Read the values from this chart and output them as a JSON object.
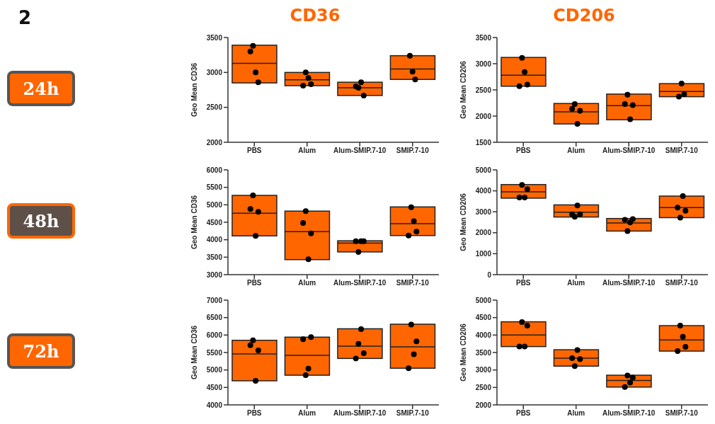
{
  "chart_data": [
    {
      "type": "box",
      "title": "CD36",
      "ylabel": "Geo Mean CD36",
      "annotations": [
        "2",
        "24h"
      ],
      "categories": [
        "PBS",
        "Alum",
        "Alum-SMIP.7-10",
        "SMIP.7-10"
      ],
      "ylim": [
        2000,
        3500
      ],
      "yticks": [
        2000,
        2500,
        3000,
        3500
      ],
      "series": [
        {
          "type": "box",
          "color": "#ff6600",
          "boxes": [
            {
              "low": 2850,
              "q1": 2850,
              "median": 3130,
              "q3": 3390,
              "high": 3390
            },
            {
              "low": 2810,
              "q1": 2810,
              "median": 2895,
              "q3": 3000,
              "high": 3000
            },
            {
              "low": 2670,
              "q1": 2670,
              "median": 2780,
              "q3": 2860,
              "high": 2860
            },
            {
              "low": 2900,
              "q1": 2900,
              "median": 3050,
              "q3": 3240,
              "high": 3240
            }
          ]
        },
        {
          "type": "scatter",
          "color": "#000000",
          "x": [
            "PBS",
            "PBS",
            "PBS",
            "PBS",
            "Alum",
            "Alum",
            "Alum",
            "Alum",
            "Alum-SMIP.7-10",
            "Alum-SMIP.7-10",
            "Alum-SMIP.7-10",
            "Alum-SMIP.7-10",
            "SMIP.7-10",
            "SMIP.7-10",
            "SMIP.7-10"
          ],
          "values": [
            3300,
            3380,
            3000,
            2860,
            2810,
            3000,
            2920,
            2830,
            2800,
            2780,
            2860,
            2670,
            3240,
            3010,
            2900
          ]
        }
      ]
    },
    {
      "type": "box",
      "title": "CD206",
      "ylabel": "Geo Mean CD206",
      "categories": [
        "PBS",
        "Alum",
        "Alum-SMIP.7-10",
        "SMIP.7-10"
      ],
      "ylim": [
        1500,
        3500
      ],
      "yticks": [
        1500,
        2000,
        2500,
        3000,
        3500
      ],
      "series": [
        {
          "type": "box",
          "color": "#ff6600",
          "boxes": [
            {
              "low": 2570,
              "q1": 2570,
              "median": 2780,
              "q3": 3120,
              "high": 3120
            },
            {
              "low": 1850,
              "q1": 1850,
              "median": 2080,
              "q3": 2240,
              "high": 2240
            },
            {
              "low": 1930,
              "q1": 1930,
              "median": 2200,
              "q3": 2420,
              "high": 2420
            },
            {
              "low": 2370,
              "q1": 2370,
              "median": 2470,
              "q3": 2620,
              "high": 2620
            }
          ]
        },
        {
          "type": "scatter",
          "color": "#000000",
          "x": [
            "PBS",
            "PBS",
            "PBS",
            "PBS",
            "Alum",
            "Alum",
            "Alum",
            "Alum",
            "Alum-SMIP.7-10",
            "Alum-SMIP.7-10",
            "Alum-SMIP.7-10",
            "Alum-SMIP.7-10",
            "SMIP.7-10",
            "SMIP.7-10",
            "SMIP.7-10"
          ],
          "values": [
            2570,
            3110,
            2840,
            2600,
            2140,
            2230,
            1850,
            2100,
            2230,
            2410,
            1940,
            2210,
            2370,
            2620,
            2420
          ]
        }
      ]
    },
    {
      "type": "box",
      "ylabel": "Geo Mean CD36",
      "annotations": [
        "48h"
      ],
      "categories": [
        "PBS",
        "Alum",
        "Alum-SMIP.7-10",
        "SMIP.7-10"
      ],
      "ylim": [
        3000,
        6000
      ],
      "yticks": [
        3000,
        3500,
        4000,
        4500,
        5000,
        5500,
        6000
      ],
      "series": [
        {
          "type": "box",
          "color": "#ff6600",
          "boxes": [
            {
              "low": 4110,
              "q1": 4110,
              "median": 4760,
              "q3": 5270,
              "high": 5270
            },
            {
              "low": 3430,
              "q1": 3430,
              "median": 4230,
              "q3": 4820,
              "high": 4820
            },
            {
              "low": 3650,
              "q1": 3650,
              "median": 3900,
              "q3": 3970,
              "high": 3970
            },
            {
              "low": 4120,
              "q1": 4120,
              "median": 4460,
              "q3": 4940,
              "high": 4940
            }
          ]
        },
        {
          "type": "scatter",
          "color": "#000000",
          "x": [
            "PBS",
            "PBS",
            "PBS",
            "PBS",
            "Alum",
            "Alum",
            "Alum",
            "Alum",
            "Alum-SMIP.7-10",
            "Alum-SMIP.7-10",
            "Alum-SMIP.7-10",
            "Alum-SMIP.7-10",
            "SMIP.7-10",
            "SMIP.7-10",
            "SMIP.7-10",
            "SMIP.7-10"
          ],
          "values": [
            4880,
            5270,
            4110,
            4800,
            4480,
            4820,
            3440,
            4180,
            3960,
            3650,
            3960,
            3960,
            4120,
            4930,
            4530,
            4230
          ]
        }
      ]
    },
    {
      "type": "box",
      "ylabel": "Geo Mean CD206",
      "categories": [
        "PBS",
        "Alum",
        "Alum-SMIP.7-10",
        "SMIP.7-10"
      ],
      "ylim": [
        0,
        5000
      ],
      "yticks": [
        0,
        1000,
        2000,
        3000,
        4000,
        5000
      ],
      "series": [
        {
          "type": "box",
          "color": "#ff6600",
          "boxes": [
            {
              "low": 3650,
              "q1": 3650,
              "median": 3950,
              "q3": 4300,
              "high": 4300
            },
            {
              "low": 2750,
              "q1": 2750,
              "median": 2980,
              "q3": 3330,
              "high": 3330
            },
            {
              "low": 2080,
              "q1": 2080,
              "median": 2470,
              "q3": 2680,
              "high": 2680
            },
            {
              "low": 2720,
              "q1": 2720,
              "median": 3200,
              "q3": 3750,
              "high": 3750
            }
          ]
        },
        {
          "type": "scatter",
          "color": "#000000",
          "x": [
            "PBS",
            "PBS",
            "PBS",
            "PBS",
            "Alum",
            "Alum",
            "Alum",
            "Alum",
            "Alum-SMIP.7-10",
            "Alum-SMIP.7-10",
            "Alum-SMIP.7-10",
            "Alum-SMIP.7-10",
            "SMIP.7-10",
            "SMIP.7-10",
            "SMIP.7-10",
            "SMIP.7-10"
          ],
          "values": [
            3680,
            4280,
            3680,
            4080,
            2880,
            2760,
            3300,
            2880,
            2620,
            2080,
            2490,
            2650,
            3200,
            2720,
            3750,
            3050
          ]
        }
      ]
    },
    {
      "type": "box",
      "ylabel": "Geo Mean CD36",
      "annotations": [
        "72h"
      ],
      "categories": [
        "PBS",
        "Alum",
        "Alum-SMIP.7-10",
        "SMIP.7-10"
      ],
      "ylim": [
        4000,
        7000
      ],
      "yticks": [
        4000,
        4500,
        5000,
        5500,
        6000,
        6500,
        7000
      ],
      "series": [
        {
          "type": "box",
          "color": "#ff6600",
          "boxes": [
            {
              "low": 4690,
              "q1": 4690,
              "median": 5460,
              "q3": 5850,
              "high": 5850
            },
            {
              "low": 4850,
              "q1": 4850,
              "median": 5420,
              "q3": 5940,
              "high": 5940
            },
            {
              "low": 5330,
              "q1": 5330,
              "median": 5680,
              "q3": 6180,
              "high": 6180
            },
            {
              "low": 5050,
              "q1": 5050,
              "median": 5660,
              "q3": 6310,
              "high": 6310
            }
          ]
        },
        {
          "type": "scatter",
          "color": "#000000",
          "x": [
            "PBS",
            "PBS",
            "PBS",
            "PBS",
            "Alum",
            "Alum",
            "Alum",
            "Alum",
            "Alum-SMIP.7-10",
            "Alum-SMIP.7-10",
            "Alum-SMIP.7-10",
            "Alum-SMIP.7-10",
            "SMIP.7-10",
            "SMIP.7-10",
            "SMIP.7-10",
            "SMIP.7-10"
          ],
          "values": [
            5710,
            5850,
            4690,
            5560,
            5880,
            4850,
            5040,
            5940,
            5330,
            5750,
            6170,
            5480,
            5050,
            6300,
            5450,
            5820
          ]
        }
      ]
    },
    {
      "type": "box",
      "ylabel": "Geo Mean CD206",
      "categories": [
        "PBS",
        "Alum",
        "Alum-SMIP.7-10",
        "SMIP.7-10"
      ],
      "ylim": [
        2000,
        5000
      ],
      "yticks": [
        2000,
        2500,
        3000,
        3500,
        4000,
        4500,
        5000
      ],
      "series": [
        {
          "type": "box",
          "color": "#ff6600",
          "boxes": [
            {
              "low": 3670,
              "q1": 3670,
              "median": 4000,
              "q3": 4380,
              "high": 4380
            },
            {
              "low": 3110,
              "q1": 3110,
              "median": 3340,
              "q3": 3580,
              "high": 3580
            },
            {
              "low": 2510,
              "q1": 2510,
              "median": 2700,
              "q3": 2850,
              "high": 2850
            },
            {
              "low": 3540,
              "q1": 3540,
              "median": 3860,
              "q3": 4270,
              "high": 4270
            }
          ]
        },
        {
          "type": "scatter",
          "color": "#000000",
          "x": [
            "PBS",
            "PBS",
            "PBS",
            "PBS",
            "Alum",
            "Alum",
            "Alum",
            "Alum",
            "Alum-SMIP.7-10",
            "Alum-SMIP.7-10",
            "Alum-SMIP.7-10",
            "Alum-SMIP.7-10",
            "SMIP.7-10",
            "SMIP.7-10",
            "SMIP.7-10",
            "SMIP.7-10"
          ],
          "values": [
            3670,
            4370,
            3670,
            4270,
            3340,
            3110,
            3570,
            3310,
            2510,
            2840,
            2640,
            2780,
            3540,
            4270,
            3950,
            3660
          ]
        }
      ]
    }
  ]
}
